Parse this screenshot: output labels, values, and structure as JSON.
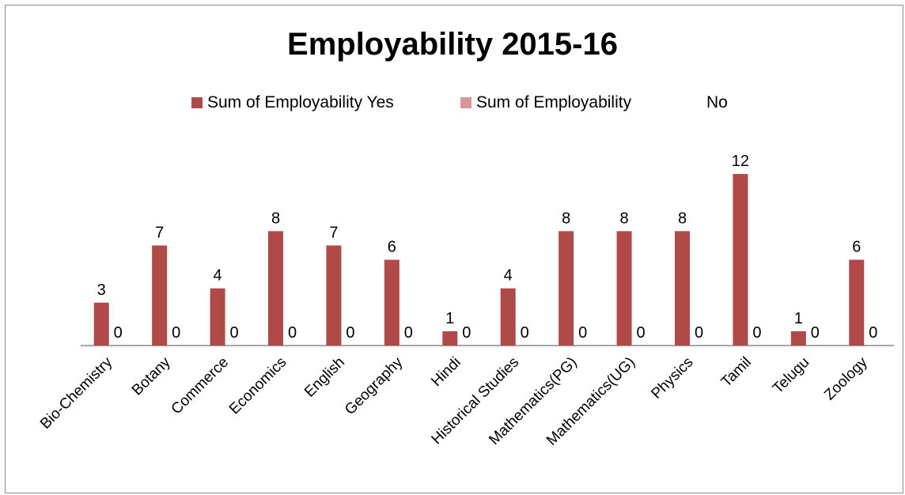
{
  "chart_data": {
    "type": "bar",
    "title": "Employability 2015-16",
    "xlabel": "",
    "ylabel": "",
    "ylim": [
      0,
      12
    ],
    "grid": false,
    "legend_position": "top",
    "categories": [
      "Bio-Chemistry",
      "Botany",
      "Commerce",
      "Economics",
      "English",
      "Geography",
      "Hindi",
      "Historical Studies",
      "Mathematics(PG)",
      "Mathematics(UG)",
      "Physics",
      "Tamil",
      "Telugu",
      "Zoology"
    ],
    "series": [
      {
        "name": "Sum of Employability Yes",
        "color": "#b04a48",
        "values": [
          3,
          7,
          4,
          8,
          7,
          6,
          1,
          4,
          8,
          8,
          8,
          12,
          1,
          6
        ]
      },
      {
        "name": "Sum of Employability",
        "color": "#d99694",
        "values": [
          0,
          0,
          0,
          0,
          0,
          0,
          0,
          0,
          0,
          0,
          0,
          0,
          0,
          0
        ]
      }
    ],
    "legend_extra_text": "No"
  }
}
